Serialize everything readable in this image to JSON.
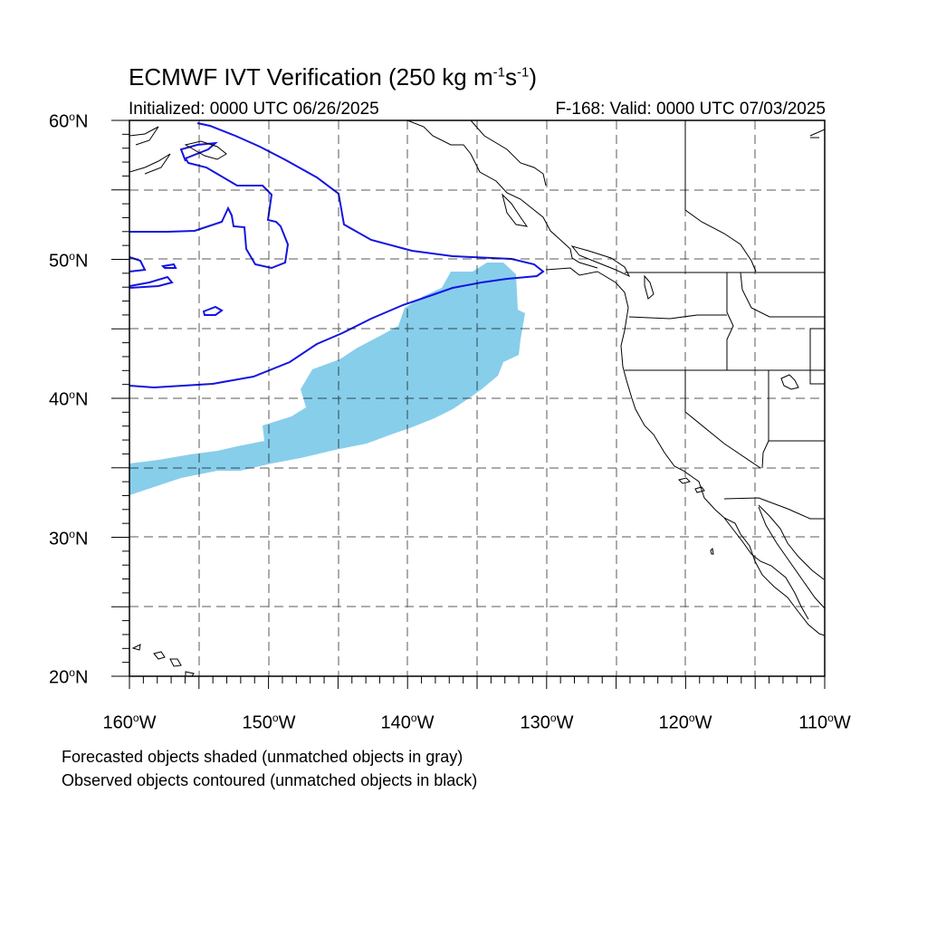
{
  "title": {
    "main": "ECMWF IVT Verification (250 kg m",
    "exp1": "-1",
    "mid": "s",
    "exp2": "-1",
    "close": ")"
  },
  "subtitle": {
    "initialized": "Initialized: 0000 UTC 06/26/2025",
    "valid": "F-168: Valid: 0000 UTC 07/03/2025"
  },
  "lat_labels": [
    {
      "num": "60",
      "hemi": "N"
    },
    {
      "num": "50",
      "hemi": "N"
    },
    {
      "num": "40",
      "hemi": "N"
    },
    {
      "num": "30",
      "hemi": "N"
    },
    {
      "num": "20",
      "hemi": "N"
    }
  ],
  "lon_labels": [
    {
      "num": "160",
      "hemi": "W"
    },
    {
      "num": "150",
      "hemi": "W"
    },
    {
      "num": "140",
      "hemi": "W"
    },
    {
      "num": "130",
      "hemi": "W"
    },
    {
      "num": "120",
      "hemi": "W"
    },
    {
      "num": "110",
      "hemi": "W"
    }
  ],
  "degree_symbol": "o",
  "notes": {
    "forecast": "Forecasted objects shaded (unmatched objects in gray)",
    "observed": "Observed objects contoured (unmatched objects in black)"
  },
  "colors": {
    "forecast_fill": "#87ceeb",
    "observed_contour": "#1414e0",
    "coastline": "#000000",
    "grid": "#000000"
  },
  "map": {
    "lon_range": [
      -160,
      -110
    ],
    "lat_range": [
      20,
      60
    ],
    "grid_spacing_deg": 5,
    "projection": "cylindrical equidistant"
  }
}
